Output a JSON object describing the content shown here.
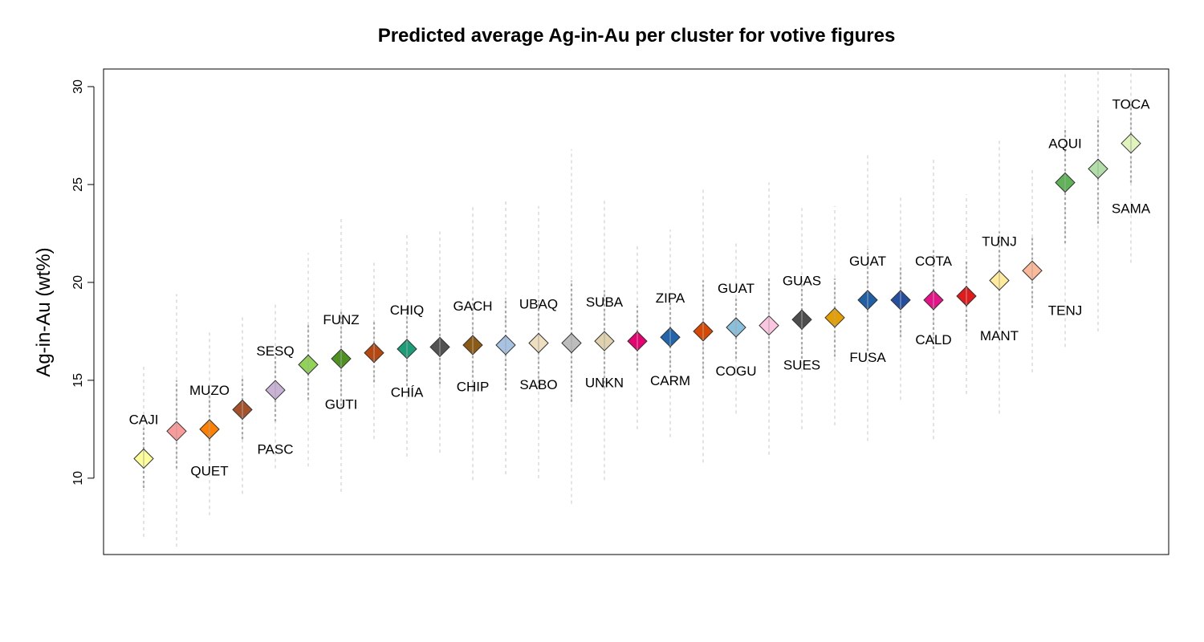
{
  "chart_data": {
    "type": "scatter",
    "title": "Predicted average Ag-in-Au per cluster for votive figures",
    "xlabel": "",
    "ylabel": "Ag-in-Au (wt%)",
    "ylim": [
      6.1,
      30.9
    ],
    "yticks": [
      "10",
      "15",
      "20",
      "25",
      "30"
    ],
    "grid": false,
    "legend": "none",
    "marker": "diamond",
    "interval_colors": {
      "outer": "#d0d0d0",
      "inner": "#a8a8a8"
    },
    "points": [
      {
        "label": "CAJI",
        "y": 11.0,
        "lo95": 7.0,
        "hi95": 15.8,
        "lo50": 9.5,
        "hi50": 12.6,
        "color": "#ffff99",
        "label_pos": "above"
      },
      {
        "label": "QUET",
        "y": 12.4,
        "lo95": 6.5,
        "hi95": 19.4,
        "lo50": 10.5,
        "hi50": 15.0,
        "color": "#fb9a99",
        "label_pos": "below"
      },
      {
        "label": "MUZO",
        "y": 12.5,
        "lo95": 8.1,
        "hi95": 17.6,
        "lo50": 10.9,
        "hi50": 14.4,
        "color": "#ff7f00",
        "label_pos": "above"
      },
      {
        "label": "PASC",
        "y": 13.5,
        "lo95": 9.2,
        "hi95": 18.3,
        "lo50": 12.0,
        "hi50": 15.1,
        "color": "#a6502a",
        "label_pos": "below"
      },
      {
        "label": "SESQ",
        "y": 14.5,
        "lo95": 10.5,
        "hi95": 19.0,
        "lo50": 12.9,
        "hi50": 16.2,
        "color": "#cab2d6",
        "label_pos": "above"
      },
      {
        "label": "GUTI",
        "y": 15.8,
        "lo95": 10.6,
        "hi95": 21.5,
        "lo50": 14.0,
        "hi50": 17.9,
        "color": "#8fd454",
        "label_pos": "below"
      },
      {
        "label": "FUNZ",
        "y": 16.1,
        "lo95": 9.3,
        "hi95": 23.3,
        "lo50": 13.7,
        "hi50": 18.6,
        "color": "#4d9221",
        "label_pos": "above"
      },
      {
        "label": "CHÍA",
        "y": 16.4,
        "lo95": 12.0,
        "hi95": 21.0,
        "lo50": 14.9,
        "hi50": 18.0,
        "color": "#b8460f",
        "label_pos": "below"
      },
      {
        "label": "CHIQ",
        "y": 16.6,
        "lo95": 11.1,
        "hi95": 22.5,
        "lo50": 14.7,
        "hi50": 18.7,
        "color": "#1b9e77",
        "label_pos": "above"
      },
      {
        "label": "CHIP",
        "y": 16.7,
        "lo95": 11.3,
        "hi95": 22.6,
        "lo50": 14.8,
        "hi50": 18.7,
        "color": "#525252",
        "label_pos": "below"
      },
      {
        "label": "GACH",
        "y": 16.8,
        "lo95": 9.9,
        "hi95": 24.0,
        "lo50": 14.4,
        "hi50": 19.2,
        "color": "#8c5a12",
        "label_pos": "above"
      },
      {
        "label": "SABO",
        "y": 16.8,
        "lo95": 10.2,
        "hi95": 24.2,
        "lo50": 14.5,
        "hi50": 19.2,
        "color": "#a6c3e3",
        "label_pos": "below"
      },
      {
        "label": "UBAQ",
        "y": 16.9,
        "lo95": 10.0,
        "hi95": 23.9,
        "lo50": 14.6,
        "hi50": 19.1,
        "color": "#f0dfbe",
        "label_pos": "above"
      },
      {
        "label": "UNKN",
        "y": 16.9,
        "lo95": 8.7,
        "hi95": 26.8,
        "lo50": 13.9,
        "hi50": 20.1,
        "color": "#bdbdbd",
        "label_pos": "below"
      },
      {
        "label": "SUBA",
        "y": 17.0,
        "lo95": 9.9,
        "hi95": 24.3,
        "lo50": 14.6,
        "hi50": 19.6,
        "color": "#e0d2ad",
        "label_pos": "above"
      },
      {
        "label": "CARM",
        "y": 17.0,
        "lo95": 12.5,
        "hi95": 21.9,
        "lo50": 15.5,
        "hi50": 18.8,
        "color": "#e7006f",
        "label_pos": "below"
      },
      {
        "label": "ZIPA",
        "y": 17.2,
        "lo95": 12.1,
        "hi95": 22.7,
        "lo50": 15.4,
        "hi50": 19.1,
        "color": "#2166ac",
        "label_pos": "above"
      },
      {
        "label": "COGU",
        "y": 17.5,
        "lo95": 10.8,
        "hi95": 24.8,
        "lo50": 15.1,
        "hi50": 20.1,
        "color": "#d94801",
        "label_pos": "below"
      },
      {
        "label": "GUAT",
        "y": 17.7,
        "lo95": 13.3,
        "hi95": 22.0,
        "lo50": 16.1,
        "hi50": 19.2,
        "color": "#8ac0dc",
        "label_pos": "above"
      },
      {
        "label": "SUES",
        "y": 17.8,
        "lo95": 11.2,
        "hi95": 25.1,
        "lo50": 15.4,
        "hi50": 20.3,
        "color": "#fcc5e0",
        "label_pos": "below"
      },
      {
        "label": "GUAS",
        "y": 18.1,
        "lo95": 12.5,
        "hi95": 23.8,
        "lo50": 16.1,
        "hi50": 20.1,
        "color": "#4d4d4d",
        "label_pos": "above"
      },
      {
        "label": "FUSA",
        "y": 18.2,
        "lo95": 12.7,
        "hi95": 23.9,
        "lo50": 16.2,
        "hi50": 20.2,
        "color": "#e69f00",
        "label_pos": "below"
      },
      {
        "label": "GUAT",
        "y": 19.1,
        "lo95": 11.9,
        "hi95": 26.6,
        "lo50": 16.5,
        "hi50": 21.7,
        "color": "#1f5fa6",
        "label_pos": "above"
      },
      {
        "label": "CALD",
        "y": 19.1,
        "lo95": 14.0,
        "hi95": 24.5,
        "lo50": 17.2,
        "hi50": 20.9,
        "color": "#244fa0",
        "label_pos": "below"
      },
      {
        "label": "COTA",
        "y": 19.1,
        "lo95": 12.0,
        "hi95": 26.4,
        "lo50": 16.6,
        "hi50": 21.7,
        "color": "#e7128a",
        "label_pos": "above"
      },
      {
        "label": "MANT",
        "y": 19.3,
        "lo95": 14.3,
        "hi95": 24.5,
        "lo50": 17.5,
        "hi50": 21.1,
        "color": "#e31a1c",
        "label_pos": "below"
      },
      {
        "label": "TUNJ",
        "y": 20.1,
        "lo95": 13.3,
        "hi95": 27.3,
        "lo50": 17.6,
        "hi50": 22.6,
        "color": "#ffeb99",
        "label_pos": "above"
      },
      {
        "label": "TENJ",
        "y": 20.6,
        "lo95": 15.4,
        "hi95": 25.8,
        "lo50": 18.7,
        "hi50": 22.3,
        "color": "#fbb998",
        "label_pos": "below"
      },
      {
        "label": "AQUI",
        "y": 25.1,
        "lo95": 16.7,
        "hi95": 30.8,
        "lo50": 22.0,
        "hi50": 27.8,
        "color": "#5db356",
        "label_pos": "above"
      },
      {
        "label": "SAMA",
        "y": 25.8,
        "lo95": 17.5,
        "hi95": 30.9,
        "lo50": 23.0,
        "hi50": 28.4,
        "color": "#b2dfa7",
        "label_pos": "below"
      },
      {
        "label": "TOCA",
        "y": 27.1,
        "lo95": 21.0,
        "hi95": 30.9,
        "lo50": 25.1,
        "hi50": 29.1,
        "color": "#dff5bb",
        "label_pos": "above"
      }
    ]
  }
}
